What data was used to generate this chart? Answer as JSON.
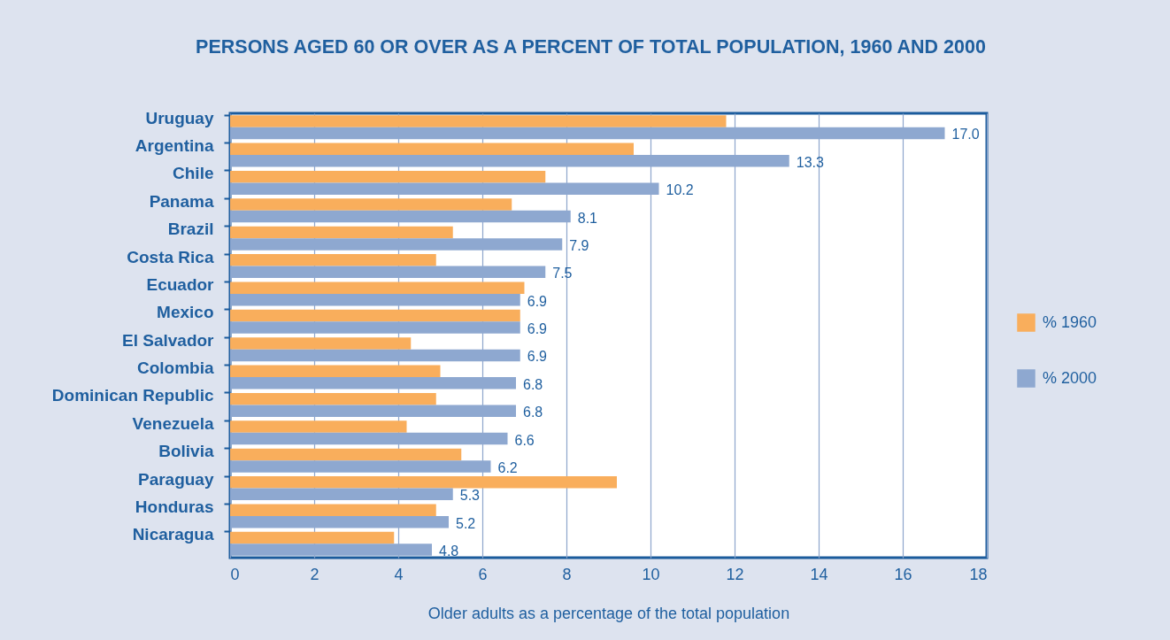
{
  "chart_data": {
    "type": "bar",
    "orientation": "horizontal",
    "title": "PERSONS AGED 60 OR OVER AS A PERCENT OF TOTAL POPULATION, 1960 AND 2000",
    "xlabel": "Older adults as a percentage of the total population",
    "categories": [
      "Uruguay",
      "Argentina",
      "Chile",
      "Panama",
      "Brazil",
      "Costa Rica",
      "Ecuador",
      "Mexico",
      "El Salvador",
      "Colombia",
      "Dominican Republic",
      "Venezuela",
      "Bolivia",
      "Paraguay",
      "Honduras",
      "Nicaragua"
    ],
    "series": [
      {
        "name": "% 1960",
        "color": "#f9ae5c",
        "values": [
          11.8,
          9.6,
          7.5,
          6.7,
          5.3,
          4.9,
          7.0,
          6.9,
          4.3,
          5.0,
          4.9,
          4.2,
          5.5,
          9.2,
          4.9,
          3.9
        ]
      },
      {
        "name": "% 2000",
        "color": "#8ea8d0",
        "values": [
          17.0,
          13.3,
          10.2,
          8.1,
          7.9,
          7.5,
          6.9,
          6.9,
          6.9,
          6.8,
          6.8,
          6.6,
          6.2,
          5.3,
          5.2,
          4.8
        ],
        "value_labels": [
          "17.0",
          "13.3",
          "10.2",
          "8.1",
          "7.9",
          "7.5",
          "6.9",
          "6.9",
          "6.9",
          "6.8",
          "6.8",
          "6.6",
          "6.2",
          "5.3",
          "5.2",
          "4.8"
        ]
      }
    ],
    "xlim": [
      0,
      18
    ],
    "xticks": [
      0,
      2,
      4,
      6,
      8,
      10,
      12,
      14,
      16,
      18
    ],
    "grid": "x",
    "legend": "right"
  }
}
